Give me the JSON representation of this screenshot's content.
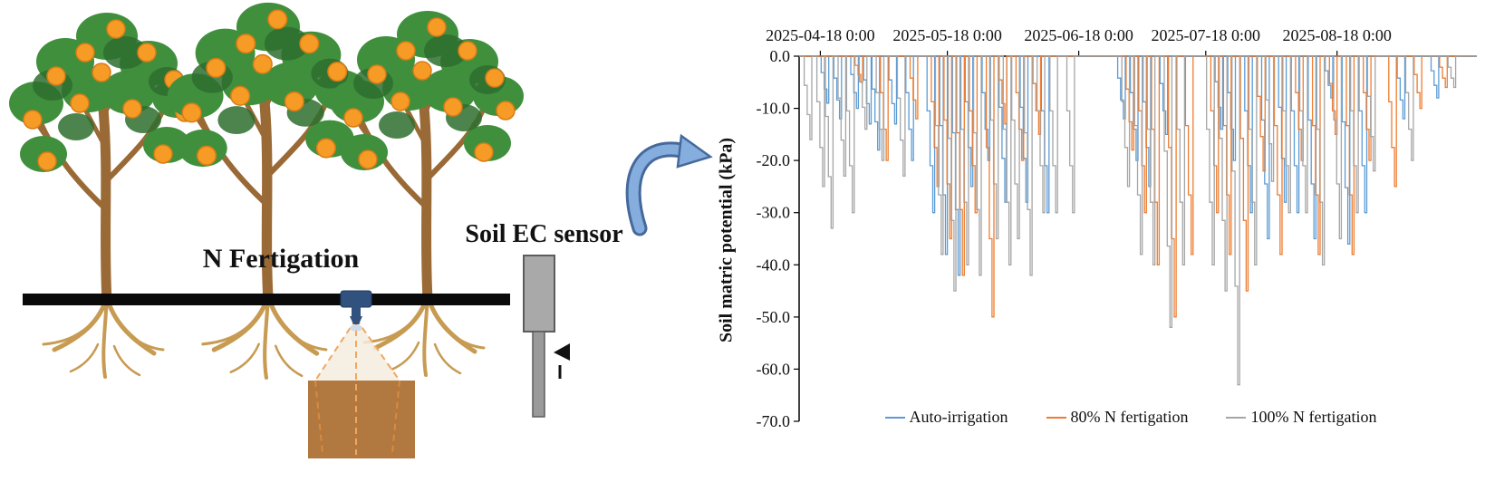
{
  "figure": {
    "diagram": {
      "n_fertigation_label": "N Fertigation",
      "soil_ec_sensor_label": "Soil EC sensor"
    }
  },
  "chart_data": {
    "type": "line",
    "title": "",
    "ylabel": "Soil matric potential (kPa)",
    "xlabel": "",
    "ylim": [
      -70,
      0
    ],
    "xlim": [
      -5,
      155
    ],
    "grid": false,
    "legend_position": "bottom",
    "encoding": "spikes = [day offset from 2025-04-18 00:00, minimum kPa reached before irrigation reset to 0]",
    "x_ticks": [
      {
        "day": 0,
        "label": "2025-04-18 0:00"
      },
      {
        "day": 30,
        "label": "2025-05-18 0:00"
      },
      {
        "day": 61,
        "label": "2025-06-18 0:00"
      },
      {
        "day": 91,
        "label": "2025-07-18 0:00"
      },
      {
        "day": 122,
        "label": "2025-08-18 0:00"
      }
    ],
    "y_ticks": [
      {
        "value": 0,
        "label": "0.0"
      },
      {
        "value": -10,
        "label": "-10.0"
      },
      {
        "value": -20,
        "label": "-20.0"
      },
      {
        "value": -30,
        "label": "-30.0"
      },
      {
        "value": -40,
        "label": "-40.0"
      },
      {
        "value": -50,
        "label": "-50.0"
      },
      {
        "value": -60,
        "label": "-60.0"
      },
      {
        "value": -70,
        "label": "-70.0"
      }
    ],
    "series": [
      {
        "name": "Auto-irrigation",
        "color": "#5B9BD5",
        "spikes": [
          [
            2,
            -9
          ],
          [
            5,
            -12
          ],
          [
            9,
            -10
          ],
          [
            12,
            -13
          ],
          [
            14,
            -18
          ],
          [
            18,
            -13
          ],
          [
            22,
            -20
          ],
          [
            27,
            -30
          ],
          [
            30,
            -38
          ],
          [
            33,
            -42
          ],
          [
            36,
            -25
          ],
          [
            40,
            -20
          ],
          [
            44,
            -28
          ],
          [
            49,
            -28
          ],
          [
            54,
            -30
          ],
          [
            72,
            -12
          ],
          [
            75,
            -20
          ],
          [
            78,
            -25
          ],
          [
            82,
            -15
          ],
          [
            95,
            -14
          ],
          [
            98,
            -20
          ],
          [
            102,
            -30
          ],
          [
            106,
            -35
          ],
          [
            110,
            -28
          ],
          [
            113,
            -30
          ],
          [
            117,
            -35
          ],
          [
            121,
            -8
          ],
          [
            125,
            -36
          ],
          [
            129,
            -30
          ],
          [
            138,
            -12
          ],
          [
            146,
            -8
          ]
        ]
      },
      {
        "name": "80% N fertigation",
        "color": "#ED7D31",
        "spikes": [
          [
            10,
            -5
          ],
          [
            16,
            -20
          ],
          [
            23,
            -12
          ],
          [
            28,
            -25
          ],
          [
            31,
            -35
          ],
          [
            34,
            -42
          ],
          [
            37,
            -30
          ],
          [
            41,
            -50
          ],
          [
            44,
            -13
          ],
          [
            48,
            -20
          ],
          [
            52,
            -15
          ],
          [
            74,
            -18
          ],
          [
            77,
            -30
          ],
          [
            80,
            -40
          ],
          [
            84,
            -50
          ],
          [
            88,
            -38
          ],
          [
            94,
            -30
          ],
          [
            97,
            -38
          ],
          [
            101,
            -45
          ],
          [
            105,
            -22
          ],
          [
            109,
            -38
          ],
          [
            114,
            -20
          ],
          [
            118,
            -38
          ],
          [
            122,
            -15
          ],
          [
            126,
            -38
          ],
          [
            130,
            -20
          ],
          [
            136,
            -25
          ],
          [
            142,
            -10
          ],
          [
            148,
            -6
          ]
        ]
      },
      {
        "name": "100% N fertigation",
        "color": "#A5A5A5",
        "spikes": [
          [
            -2,
            -16
          ],
          [
            1,
            -25
          ],
          [
            3,
            -33
          ],
          [
            6,
            -23
          ],
          [
            8,
            -30
          ],
          [
            11,
            -14
          ],
          [
            15,
            -20
          ],
          [
            20,
            -23
          ],
          [
            29,
            -38
          ],
          [
            32,
            -45
          ],
          [
            35,
            -40
          ],
          [
            38,
            -42
          ],
          [
            42,
            -35
          ],
          [
            45,
            -40
          ],
          [
            47,
            -35
          ],
          [
            50,
            -42
          ],
          [
            53,
            -30
          ],
          [
            56,
            -30
          ],
          [
            60,
            -30
          ],
          [
            73,
            -25
          ],
          [
            76,
            -38
          ],
          [
            79,
            -40
          ],
          [
            83,
            -52
          ],
          [
            86,
            -40
          ],
          [
            93,
            -40
          ],
          [
            96,
            -45
          ],
          [
            99,
            -63
          ],
          [
            103,
            -40
          ],
          [
            107,
            -24
          ],
          [
            111,
            -30
          ],
          [
            115,
            -30
          ],
          [
            119,
            -40
          ],
          [
            123,
            -35
          ],
          [
            127,
            -30
          ],
          [
            131,
            -22
          ],
          [
            140,
            -20
          ],
          [
            150,
            -6
          ]
        ]
      }
    ]
  }
}
